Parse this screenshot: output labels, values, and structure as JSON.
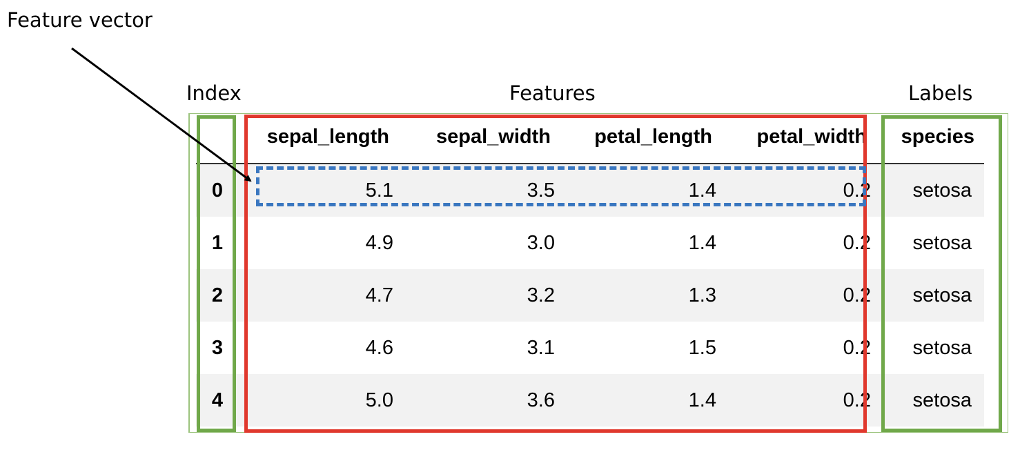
{
  "annotations": {
    "feature_vector": "Feature vector",
    "index": "Index",
    "features": "Features",
    "labels": "Labels"
  },
  "table": {
    "columns": [
      "sepal_length",
      "sepal_width",
      "petal_length",
      "petal_width",
      "species"
    ],
    "rows": [
      {
        "index": "0",
        "sepal_length": "5.1",
        "sepal_width": "3.5",
        "petal_length": "1.4",
        "petal_width": "0.2",
        "species": "setosa"
      },
      {
        "index": "1",
        "sepal_length": "4.9",
        "sepal_width": "3.0",
        "petal_length": "1.4",
        "petal_width": "0.2",
        "species": "setosa"
      },
      {
        "index": "2",
        "sepal_length": "4.7",
        "sepal_width": "3.2",
        "petal_length": "1.3",
        "petal_width": "0.2",
        "species": "setosa"
      },
      {
        "index": "3",
        "sepal_length": "4.6",
        "sepal_width": "3.1",
        "petal_length": "1.5",
        "petal_width": "0.2",
        "species": "setosa"
      },
      {
        "index": "4",
        "sepal_length": "5.0",
        "sepal_width": "3.6",
        "petal_length": "1.4",
        "petal_width": "0.2",
        "species": "setosa"
      }
    ]
  },
  "colors": {
    "index_box": "#70a84a",
    "features_box": "#e0382d",
    "labels_box": "#70a84a",
    "feature_vector_box": "#3a77c0",
    "arrow": "#000000",
    "row_shade": "#f2f2f2"
  }
}
